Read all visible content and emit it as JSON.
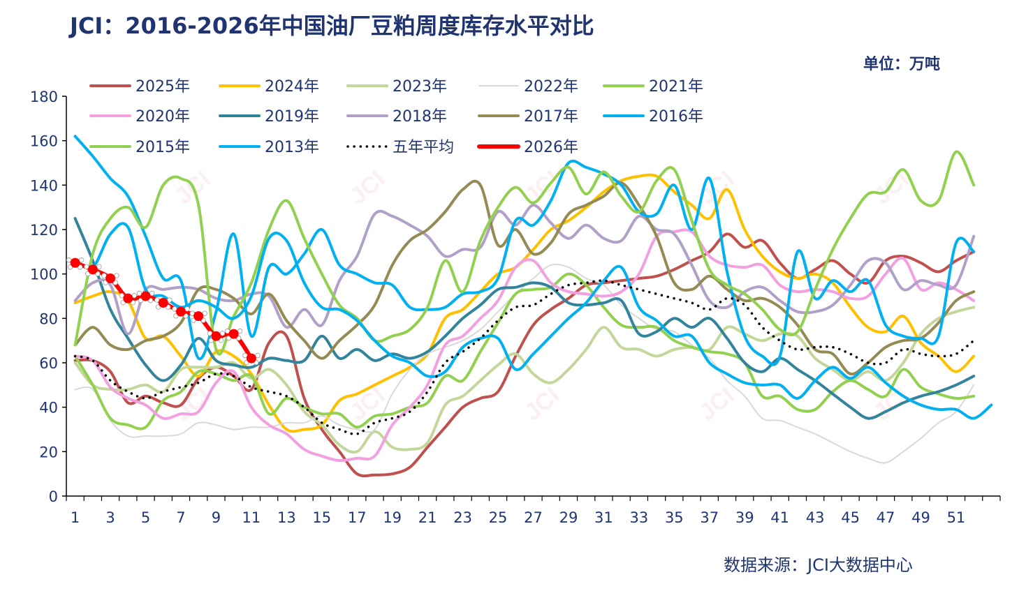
{
  "title": "JCI：2016-2026年中国油厂豆粕周度库存水平对比",
  "unit": "单位：万吨",
  "source": "数据来源：JCI大数据中心",
  "watermark": "JCI",
  "chart_data": {
    "type": "line",
    "x_tick_labels": [
      "1",
      "3",
      "5",
      "7",
      "9",
      "11",
      "13",
      "15",
      "17",
      "19",
      "21",
      "23",
      "25",
      "27",
      "29",
      "31",
      "33",
      "35",
      "37",
      "39",
      "41",
      "43",
      "45",
      "47",
      "49",
      "51"
    ],
    "ylim": [
      0,
      180
    ],
    "yticks": [
      0,
      20,
      40,
      60,
      80,
      100,
      120,
      140,
      160,
      180
    ],
    "legend_position": "top",
    "grid": false,
    "series": [
      {
        "name": "2025年",
        "color": "#c0504d",
        "dash": "solid",
        "width": 4,
        "values": [
          61,
          61,
          56,
          42,
          45,
          42,
          41,
          53,
          58,
          54,
          48,
          69,
          72,
          44,
          30,
          20,
          10,
          9.5,
          10,
          13,
          22,
          31,
          40,
          44,
          47,
          63,
          77,
          84,
          89,
          95,
          96,
          97,
          98,
          99,
          102,
          106,
          110,
          118,
          112,
          115,
          105,
          98,
          102,
          106,
          100,
          96,
          106,
          108,
          105,
          101,
          106,
          110
        ]
      },
      {
        "name": "2024年",
        "color": "#ffc000",
        "dash": "solid",
        "width": 4,
        "values": [
          87,
          90,
          92,
          88,
          71,
          72,
          63,
          54,
          65,
          63,
          55,
          41,
          30,
          30,
          32,
          43,
          46,
          50,
          54,
          58,
          64,
          80,
          84,
          92,
          100,
          103,
          111,
          120,
          124,
          130,
          137,
          142,
          144,
          144,
          137,
          131,
          125,
          138,
          120,
          108,
          101,
          98,
          100,
          96,
          85,
          76,
          74,
          81,
          69,
          63,
          56,
          63
        ]
      },
      {
        "name": "2023年",
        "color": "#c4d79b",
        "dash": "solid",
        "width": 4,
        "values": [
          60,
          50,
          48,
          48,
          50,
          47,
          57,
          58,
          58,
          60,
          53,
          57,
          50,
          38,
          32,
          23,
          20,
          29,
          22,
          21,
          24,
          41,
          45,
          52,
          59,
          64,
          55,
          51,
          57,
          66,
          76,
          67,
          66,
          63,
          66,
          67,
          66,
          76,
          73,
          70,
          73,
          72,
          62,
          57,
          52,
          56,
          52,
          60,
          73,
          80,
          83,
          85
        ]
      },
      {
        "name": "2022年",
        "color": "#d9d9d9",
        "dash": "solid",
        "width": 2,
        "values": [
          48,
          48,
          34,
          27,
          27,
          27,
          28,
          33,
          32,
          30,
          31,
          31,
          33,
          33,
          36,
          32,
          30,
          30,
          46,
          57,
          64,
          67,
          70,
          75,
          83,
          91,
          98,
          104,
          103,
          98,
          95,
          86,
          80,
          75,
          74,
          68,
          62,
          52,
          45,
          35,
          34,
          31,
          28,
          24,
          20,
          17,
          15,
          20,
          26,
          33,
          38,
          50
        ]
      },
      {
        "name": "2021年",
        "color": "#92d050",
        "dash": "solid",
        "width": 4,
        "values": [
          63,
          50,
          35,
          32,
          31,
          43,
          47,
          56,
          55,
          52,
          54,
          37,
          44,
          40,
          37,
          37,
          31,
          36,
          37,
          40,
          42,
          54,
          52,
          65,
          78,
          91,
          93,
          94,
          100,
          95,
          85,
          77,
          76,
          76,
          70,
          67,
          65,
          64,
          60,
          45,
          45,
          39,
          39,
          47,
          52,
          48,
          45,
          57,
          49,
          46,
          44,
          45
        ]
      },
      {
        "name": "2020年",
        "color": "#f2a0e0",
        "dash": "solid",
        "width": 4,
        "values": [
          63,
          61,
          49,
          44,
          41,
          35,
          37,
          38,
          51,
          56,
          40,
          32,
          28,
          21,
          18,
          16,
          17,
          18,
          32,
          40,
          50,
          68,
          72,
          80,
          88,
          103,
          106,
          96,
          92,
          91,
          90,
          92,
          100,
          117,
          119,
          119,
          108,
          104,
          103,
          104,
          95,
          92,
          93,
          92,
          89,
          90,
          100,
          107,
          93,
          96,
          93,
          88
        ]
      },
      {
        "name": "2019年",
        "color": "#31849b",
        "dash": "solid",
        "width": 4,
        "values": [
          125,
          106,
          84,
          71,
          59,
          52,
          59,
          71,
          61,
          59,
          58,
          62,
          61,
          61,
          72,
          62,
          66,
          61,
          64,
          62,
          65,
          72,
          80,
          86,
          93,
          94,
          96,
          94,
          87,
          86,
          87,
          88,
          73,
          74,
          80,
          76,
          80,
          71,
          60,
          56,
          62,
          57,
          52,
          46,
          40,
          35,
          38,
          42,
          45,
          47,
          50,
          54
        ]
      },
      {
        "name": "2018年",
        "color": "#b1a0c7",
        "dash": "solid",
        "width": 4,
        "values": [
          88,
          96,
          95,
          73,
          93,
          93,
          94,
          93,
          89,
          88,
          91,
          90,
          76,
          84,
          77,
          97,
          108,
          127,
          126,
          122,
          117,
          108,
          111,
          112,
          128,
          122,
          131,
          123,
          116,
          122,
          116,
          115,
          126,
          120,
          118,
          104,
          88,
          85,
          92,
          94,
          88,
          83,
          83,
          86,
          95,
          106,
          105,
          93,
          97,
          95,
          95,
          117
        ]
      },
      {
        "name": "2017年",
        "color": "#948a54",
        "dash": "solid",
        "width": 4,
        "values": [
          68,
          76,
          68,
          66,
          70,
          72,
          78,
          93,
          93,
          89,
          82,
          91,
          79,
          70,
          62,
          70,
          77,
          86,
          104,
          115,
          120,
          128,
          138,
          140,
          113,
          120,
          109,
          114,
          127,
          131,
          135,
          141,
          131,
          117,
          96,
          93,
          99,
          93,
          88,
          89,
          85,
          77,
          66,
          64,
          55,
          60,
          67,
          70,
          71,
          78,
          88,
          92
        ]
      },
      {
        "name": "2016年",
        "color": "#00b0f0",
        "dash": "solid",
        "width": 4,
        "values": [
          162,
          153,
          143,
          135,
          117,
          98,
          97,
          62,
          83,
          118,
          72,
          103,
          100,
          109,
          120,
          104,
          100,
          96,
          95,
          85,
          84,
          85,
          91,
          92,
          98,
          124,
          122,
          133,
          150,
          148,
          145,
          140,
          128,
          127,
          140,
          120,
          143,
          101,
          72,
          63,
          63,
          110,
          89,
          97,
          92,
          97,
          77,
          72,
          71,
          72,
          114,
          110
        ]
      },
      {
        "name": "2015年",
        "color": "#92d050",
        "dash": "solid",
        "width": 4,
        "values": [
          68,
          109,
          125,
          130,
          121,
          140,
          143,
          131,
          66,
          81,
          96,
          120,
          133,
          116,
          100,
          86,
          80,
          70,
          72,
          75,
          85,
          106,
          92,
          115,
          130,
          139,
          132,
          141,
          148,
          136,
          146,
          135,
          128,
          142,
          147,
          124,
          102,
          95,
          91,
          84,
          75,
          74,
          93,
          111,
          125,
          136,
          137,
          147,
          133,
          133,
          155,
          140
        ]
      },
      {
        "name": "2013年",
        "color": "#00b0f0",
        "dash": "solid",
        "width": 4,
        "values": [
          106,
          103,
          118,
          121,
          93,
          90,
          85,
          88,
          85,
          80,
          90,
          116,
          115,
          96,
          85,
          84,
          79,
          70,
          63,
          60,
          54,
          56,
          67,
          71,
          71,
          57,
          64,
          72,
          80,
          87,
          97,
          103,
          85,
          79,
          72,
          72,
          60,
          55,
          51,
          50,
          50,
          44,
          52,
          58,
          53,
          58,
          51,
          45,
          41,
          39,
          39,
          35,
          41
        ]
      },
      {
        "name": "五年平均",
        "color": "#000000",
        "dash": "dot",
        "width": 3.5,
        "values": [
          63,
          61,
          52,
          47,
          44,
          47,
          49,
          51,
          55,
          54,
          49,
          47,
          45,
          40,
          33,
          30,
          28,
          33,
          35,
          38,
          47,
          60,
          65,
          71,
          79,
          85,
          86,
          91,
          95,
          96,
          97,
          95,
          93,
          91,
          89,
          87,
          84,
          89,
          86,
          76,
          70,
          66,
          67,
          67,
          64,
          60,
          60,
          66,
          64,
          63,
          64,
          70
        ]
      },
      {
        "name": "2026年",
        "color": "#ff0000",
        "dash": "solid",
        "width": 6,
        "values": [
          105,
          102,
          98,
          89,
          90,
          87,
          83,
          81,
          72,
          73,
          62
        ]
      }
    ]
  }
}
